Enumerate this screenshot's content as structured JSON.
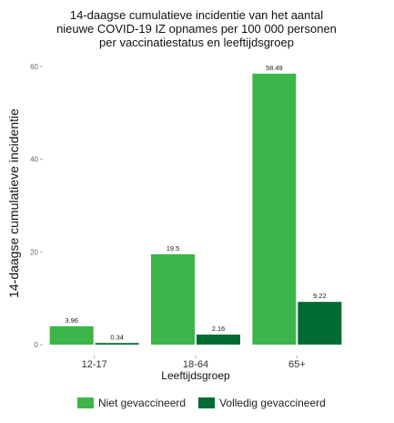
{
  "chart_data": {
    "type": "bar",
    "title": "14-daagse cumulatieve incidentie van het aantal\nnieuwe COVID-19 IZ opnames per 100 000 personen\nper vaccinatiestatus en leeftijdsgroep",
    "xlabel": "Leeftijdsgroep",
    "ylabel": "14-daagse cumulatieve incidentie",
    "categories": [
      "12-17",
      "18-64",
      "65+"
    ],
    "series": [
      {
        "name": "Niet gevaccineerd",
        "values": [
          3.96,
          19.5,
          58.49
        ],
        "labels": [
          "3.96",
          "19.5",
          "58.49"
        ],
        "color": "#3cb54a"
      },
      {
        "name": "Volledig gevaccineerd",
        "values": [
          0.34,
          2.16,
          9.22
        ],
        "labels": [
          "0.34",
          "2.16",
          "9.22"
        ],
        "color": "#006b33"
      }
    ],
    "ylim": [
      0,
      61
    ],
    "yticks": [
      0,
      20,
      40,
      60
    ],
    "grid": false,
    "legend_position": "bottom"
  }
}
